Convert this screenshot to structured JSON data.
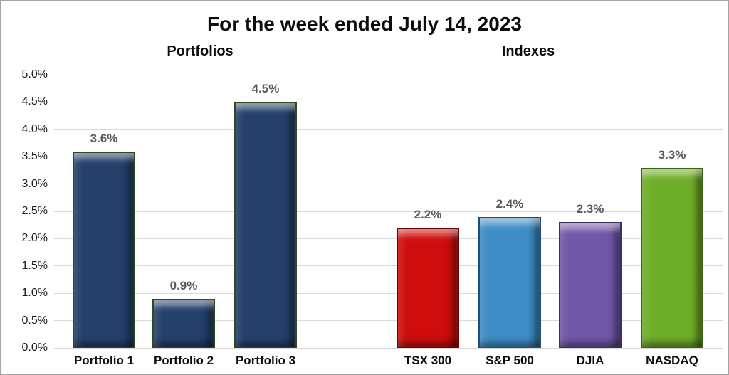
{
  "figure": {
    "background": "#ffffff",
    "border_color": "#a3a3a3"
  },
  "chart_data": {
    "type": "bar",
    "title": "For the week ended July 14, 2023",
    "section_labels": [
      {
        "label": "Portfolios"
      },
      {
        "label": "Indexes"
      }
    ],
    "xlabel": "",
    "ylabel": "",
    "ylim": [
      0,
      5.0
    ],
    "ytick_step": 0.5,
    "ytick_labels": [
      "5.0%",
      "4.5%",
      "4.0%",
      "3.5%",
      "3.0%",
      "2.5%",
      "2.0%",
      "1.5%",
      "1.0%",
      "0.5%",
      "0.0%"
    ],
    "grid": true,
    "gridline_color": "#d9d9d9",
    "data_label_color": "#595959",
    "legend": "none",
    "bars": [
      {
        "category": "Portfolio 1",
        "value": 3.6,
        "label": "3.6%",
        "group": "Portfolios",
        "fill": "#24406b",
        "outline": "#2e4a1e"
      },
      {
        "category": "Portfolio 2",
        "value": 0.9,
        "label": "0.9%",
        "group": "Portfolios",
        "fill": "#24406b",
        "outline": "#2e4a1e"
      },
      {
        "category": "Portfolio 3",
        "value": 4.5,
        "label": "4.5%",
        "group": "Portfolios",
        "fill": "#24406b",
        "outline": "#2e4a1e"
      },
      {
        "category": "TSX 300",
        "value": 2.2,
        "label": "2.2%",
        "group": "Indexes",
        "fill": "#cf0d0d",
        "outline": "#6e0202"
      },
      {
        "category": "S&P 500",
        "value": 2.4,
        "label": "2.4%",
        "group": "Indexes",
        "fill": "#3f8dc6",
        "outline": "#1f4e79"
      },
      {
        "category": "DJIA",
        "value": 2.3,
        "label": "2.3%",
        "group": "Indexes",
        "fill": "#7157a8",
        "outline": "#3e2d66"
      },
      {
        "category": "NASDAQ",
        "value": 3.3,
        "label": "3.3%",
        "group": "Indexes",
        "fill": "#6fae28",
        "outline": "#3c6413"
      }
    ]
  }
}
